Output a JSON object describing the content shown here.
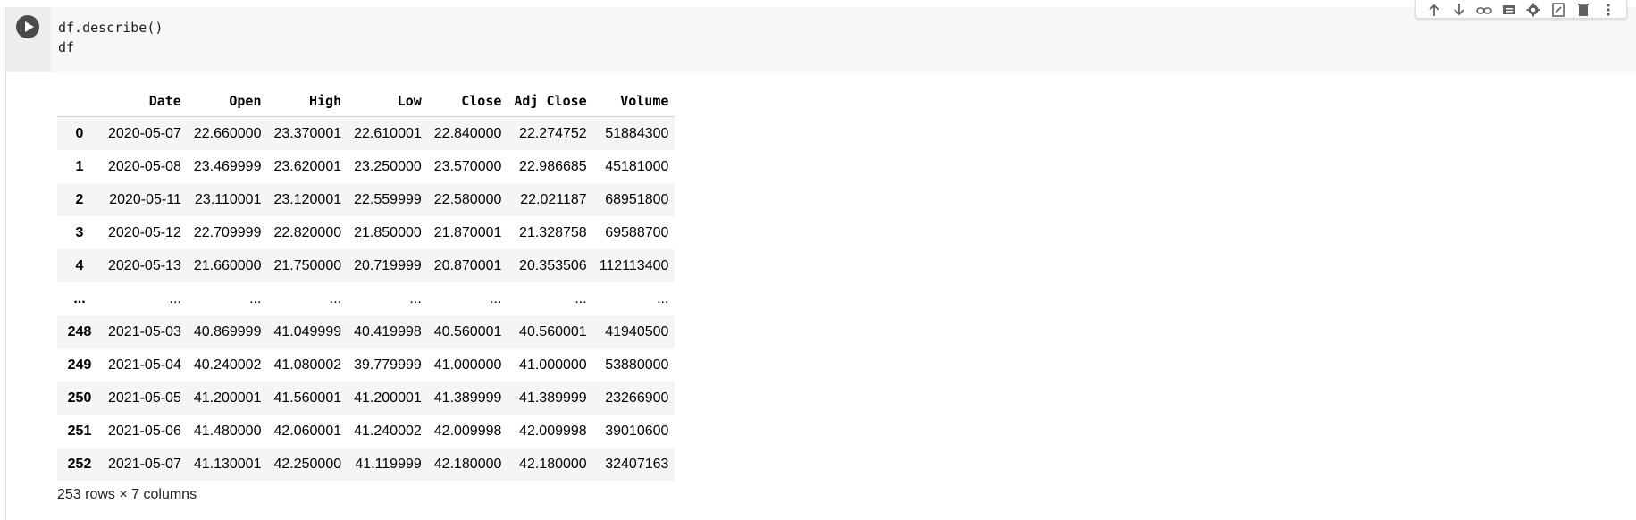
{
  "cell": {
    "code_lines": [
      "df.describe()",
      "df"
    ]
  },
  "toolbar": {
    "icons": [
      "arrow-up-icon",
      "arrow-down-icon",
      "link-icon",
      "comment-icon",
      "gear-icon",
      "mirror-cell-icon",
      "delete-icon",
      "more-vert-icon"
    ]
  },
  "table": {
    "columns": [
      "",
      "Date",
      "Open",
      "High",
      "Low",
      "Close",
      "Adj Close",
      "Volume"
    ],
    "rows": [
      [
        "0",
        "2020-05-07",
        "22.660000",
        "23.370001",
        "22.610001",
        "22.840000",
        "22.274752",
        "51884300"
      ],
      [
        "1",
        "2020-05-08",
        "23.469999",
        "23.620001",
        "23.250000",
        "23.570000",
        "22.986685",
        "45181000"
      ],
      [
        "2",
        "2020-05-11",
        "23.110001",
        "23.120001",
        "22.559999",
        "22.580000",
        "22.021187",
        "68951800"
      ],
      [
        "3",
        "2020-05-12",
        "22.709999",
        "22.820000",
        "21.850000",
        "21.870001",
        "21.328758",
        "69588700"
      ],
      [
        "4",
        "2020-05-13",
        "21.660000",
        "21.750000",
        "20.719999",
        "20.870001",
        "20.353506",
        "112113400"
      ],
      [
        "...",
        "...",
        "...",
        "...",
        "...",
        "...",
        "...",
        "..."
      ],
      [
        "248",
        "2021-05-03",
        "40.869999",
        "41.049999",
        "40.419998",
        "40.560001",
        "40.560001",
        "41940500"
      ],
      [
        "249",
        "2021-05-04",
        "40.240002",
        "41.080002",
        "39.779999",
        "41.000000",
        "41.000000",
        "53880000"
      ],
      [
        "250",
        "2021-05-05",
        "41.200001",
        "41.560001",
        "41.200001",
        "41.389999",
        "41.389999",
        "23266900"
      ],
      [
        "251",
        "2021-05-06",
        "41.480000",
        "42.060001",
        "41.240002",
        "42.009998",
        "42.009998",
        "39010600"
      ],
      [
        "252",
        "2021-05-07",
        "41.130001",
        "42.250000",
        "41.119999",
        "42.180000",
        "42.180000",
        "32407163"
      ]
    ],
    "summary": "253 rows × 7 columns"
  }
}
